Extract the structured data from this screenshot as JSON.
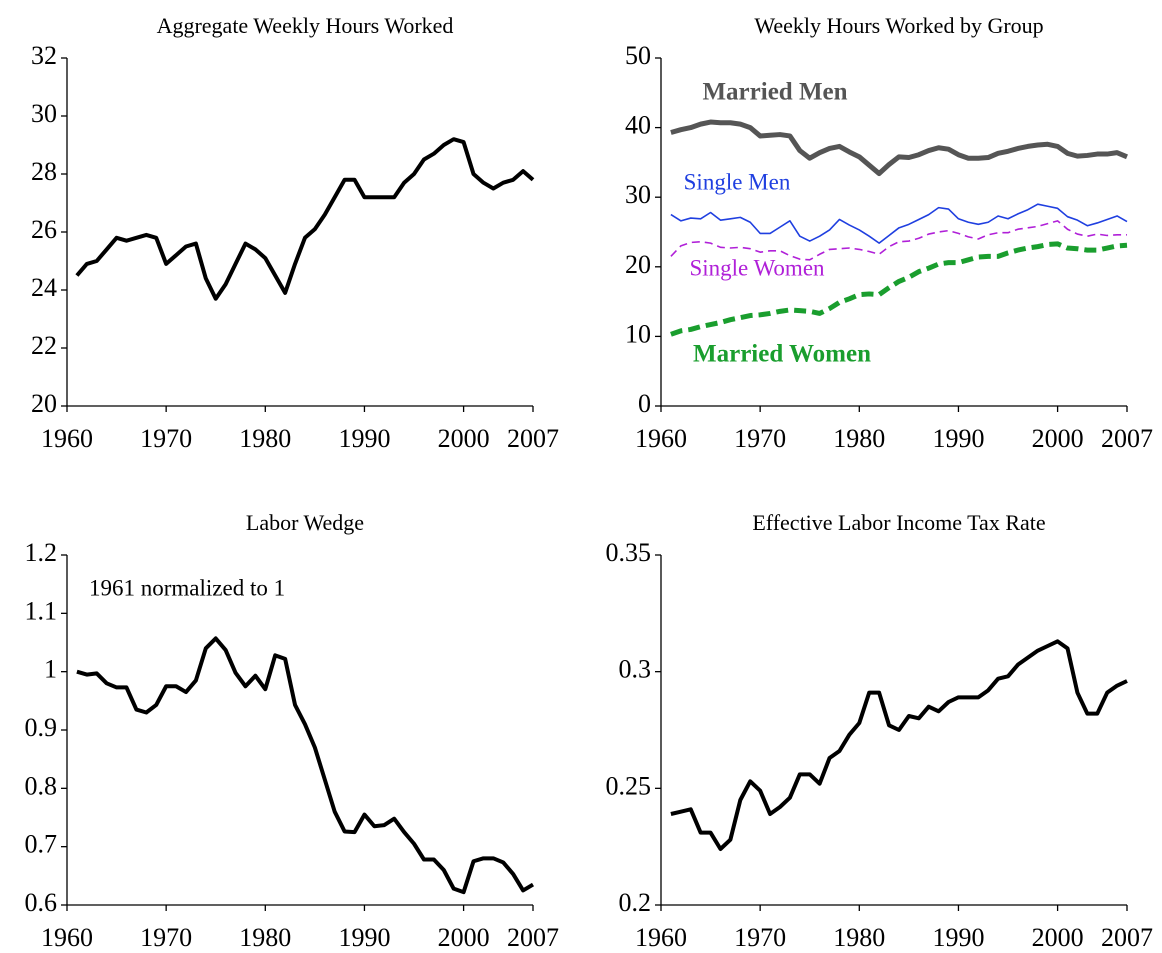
{
  "chart_data": [
    {
      "type": "line",
      "title": "Aggregate Weekly Hours Worked",
      "x": [
        1961,
        1962,
        1963,
        1964,
        1965,
        1966,
        1967,
        1968,
        1969,
        1970,
        1971,
        1972,
        1973,
        1974,
        1975,
        1976,
        1977,
        1978,
        1979,
        1980,
        1981,
        1982,
        1983,
        1984,
        1985,
        1986,
        1987,
        1988,
        1989,
        1990,
        1991,
        1992,
        1993,
        1994,
        1995,
        1996,
        1997,
        1998,
        1999,
        2000,
        2001,
        2002,
        2003,
        2004,
        2005,
        2006,
        2007
      ],
      "values": [
        24.5,
        24.9,
        25.0,
        25.4,
        25.8,
        25.7,
        25.8,
        25.9,
        25.8,
        24.9,
        25.2,
        25.5,
        25.6,
        24.4,
        23.7,
        24.2,
        24.9,
        25.6,
        25.4,
        25.1,
        24.5,
        23.9,
        24.9,
        25.8,
        26.1,
        26.6,
        27.2,
        27.8,
        27.8,
        27.2,
        27.2,
        27.2,
        27.2,
        27.7,
        28.0,
        28.5,
        28.7,
        29.0,
        29.2,
        29.1,
        28.0,
        27.7,
        27.5,
        27.7,
        27.8,
        28.1,
        27.8
      ],
      "color": "#000000",
      "xlim": [
        1960,
        2007
      ],
      "xticks": [
        1960,
        1970,
        1980,
        1990,
        2000,
        2007
      ],
      "ylim": [
        20,
        32
      ],
      "yticks": [
        20,
        22,
        24,
        26,
        28,
        30,
        32
      ]
    },
    {
      "type": "line",
      "title": "Weekly Hours Worked by Group",
      "x": [
        1961,
        1962,
        1963,
        1964,
        1965,
        1966,
        1967,
        1968,
        1969,
        1970,
        1971,
        1972,
        1973,
        1974,
        1975,
        1976,
        1977,
        1978,
        1979,
        1980,
        1981,
        1982,
        1983,
        1984,
        1985,
        1986,
        1987,
        1988,
        1989,
        1990,
        1991,
        1992,
        1993,
        1994,
        1995,
        1996,
        1997,
        1998,
        1999,
        2000,
        2001,
        2002,
        2003,
        2004,
        2005,
        2006,
        2007
      ],
      "series": [
        {
          "name": "Married Men",
          "color": "#555555",
          "values": [
            39.3,
            39.7,
            40.0,
            40.5,
            40.8,
            40.7,
            40.7,
            40.5,
            40.0,
            38.8,
            38.9,
            39.0,
            38.8,
            36.7,
            35.6,
            36.4,
            37.0,
            37.3,
            36.5,
            35.8,
            34.6,
            33.4,
            34.7,
            35.8,
            35.7,
            36.1,
            36.7,
            37.1,
            36.9,
            36.1,
            35.6,
            35.6,
            35.7,
            36.3,
            36.6,
            37.0,
            37.3,
            37.5,
            37.6,
            37.3,
            36.3,
            35.9,
            36.0,
            36.2,
            36.2,
            36.4,
            35.8
          ]
        },
        {
          "name": "Single Men",
          "color": "#1f3fe0",
          "values": [
            27.5,
            26.6,
            27.0,
            26.9,
            27.8,
            26.7,
            26.9,
            27.1,
            26.4,
            24.8,
            24.8,
            25.7,
            26.6,
            24.4,
            23.7,
            24.4,
            25.3,
            26.8,
            26.0,
            25.3,
            24.4,
            23.4,
            24.5,
            25.6,
            26.1,
            26.8,
            27.5,
            28.5,
            28.3,
            26.9,
            26.4,
            26.1,
            26.4,
            27.3,
            26.9,
            27.6,
            28.2,
            29.0,
            28.7,
            28.4,
            27.2,
            26.7,
            25.9,
            26.3,
            26.8,
            27.3,
            26.5
          ]
        },
        {
          "name": "Single Women",
          "color": "#b020d8",
          "values": [
            21.5,
            23.0,
            23.5,
            23.6,
            23.4,
            22.8,
            22.7,
            22.8,
            22.6,
            22.1,
            22.3,
            22.3,
            21.6,
            21.1,
            21.0,
            21.8,
            22.5,
            22.6,
            22.7,
            22.5,
            22.2,
            21.8,
            22.9,
            23.6,
            23.7,
            24.1,
            24.7,
            25.0,
            25.2,
            24.8,
            24.3,
            24.0,
            24.6,
            24.9,
            24.9,
            25.4,
            25.6,
            25.8,
            26.2,
            26.6,
            25.4,
            24.7,
            24.4,
            24.7,
            24.5,
            24.6,
            24.6
          ]
        },
        {
          "name": "Married Women",
          "color": "#1a9e2e",
          "values": [
            10.3,
            10.8,
            11.0,
            11.4,
            11.7,
            12.0,
            12.4,
            12.7,
            13.0,
            13.1,
            13.3,
            13.6,
            13.8,
            13.7,
            13.6,
            13.3,
            14.0,
            14.9,
            15.4,
            16.0,
            16.1,
            16.0,
            17.0,
            17.9,
            18.5,
            19.3,
            19.8,
            20.4,
            20.6,
            20.6,
            21.0,
            21.4,
            21.5,
            21.5,
            22.0,
            22.4,
            22.7,
            22.9,
            23.2,
            23.3,
            22.7,
            22.6,
            22.4,
            22.4,
            22.7,
            23.0,
            23.1
          ]
        }
      ],
      "xlim": [
        1960,
        2007
      ],
      "xticks": [
        1960,
        1970,
        1980,
        1990,
        2000,
        2007
      ],
      "ylim": [
        0,
        50
      ],
      "yticks": [
        0,
        10,
        20,
        30,
        40,
        50
      ]
    },
    {
      "type": "line",
      "title": "Labor Wedge",
      "annotation": "1961 normalized to 1",
      "x": [
        1961,
        1962,
        1963,
        1964,
        1965,
        1966,
        1967,
        1968,
        1969,
        1970,
        1971,
        1972,
        1973,
        1974,
        1975,
        1976,
        1977,
        1978,
        1979,
        1980,
        1981,
        1982,
        1983,
        1984,
        1985,
        1986,
        1987,
        1988,
        1989,
        1990,
        1991,
        1992,
        1993,
        1994,
        1995,
        1996,
        1997,
        1998,
        1999,
        2000,
        2001,
        2002,
        2003,
        2004,
        2005,
        2006,
        2007
      ],
      "values": [
        1.0,
        0.995,
        0.997,
        0.98,
        0.973,
        0.973,
        0.935,
        0.93,
        0.943,
        0.975,
        0.975,
        0.965,
        0.985,
        1.04,
        1.057,
        1.037,
        0.998,
        0.975,
        0.993,
        0.97,
        1.028,
        1.022,
        0.943,
        0.91,
        0.87,
        0.815,
        0.76,
        0.726,
        0.725,
        0.755,
        0.735,
        0.737,
        0.748,
        0.725,
        0.705,
        0.678,
        0.678,
        0.66,
        0.628,
        0.622,
        0.675,
        0.68,
        0.68,
        0.673,
        0.653,
        0.625,
        0.635
      ],
      "color": "#000000",
      "xlim": [
        1960,
        2007
      ],
      "xticks": [
        1960,
        1970,
        1980,
        1990,
        2000,
        2007
      ],
      "ylim": [
        0.6,
        1.2
      ],
      "yticks": [
        0.6,
        0.7,
        0.8,
        0.9,
        1,
        1.1,
        1.2
      ]
    },
    {
      "type": "line",
      "title": "Effective Labor Income Tax Rate",
      "x": [
        1961,
        1962,
        1963,
        1964,
        1965,
        1966,
        1967,
        1968,
        1969,
        1970,
        1971,
        1972,
        1973,
        1974,
        1975,
        1976,
        1977,
        1978,
        1979,
        1980,
        1981,
        1982,
        1983,
        1984,
        1985,
        1986,
        1987,
        1988,
        1989,
        1990,
        1991,
        1992,
        1993,
        1994,
        1995,
        1996,
        1997,
        1998,
        1999,
        2000,
        2001,
        2002,
        2003,
        2004,
        2005,
        2006,
        2007
      ],
      "values": [
        0.239,
        0.24,
        0.241,
        0.231,
        0.231,
        0.224,
        0.228,
        0.245,
        0.253,
        0.249,
        0.239,
        0.242,
        0.246,
        0.256,
        0.256,
        0.252,
        0.263,
        0.266,
        0.273,
        0.278,
        0.291,
        0.291,
        0.277,
        0.275,
        0.281,
        0.28,
        0.285,
        0.283,
        0.287,
        0.289,
        0.289,
        0.289,
        0.292,
        0.297,
        0.298,
        0.303,
        0.306,
        0.309,
        0.311,
        0.313,
        0.31,
        0.291,
        0.282,
        0.282,
        0.291,
        0.294,
        0.296
      ],
      "color": "#000000",
      "xlim": [
        1960,
        2007
      ],
      "xticks": [
        1960,
        1970,
        1980,
        1990,
        2000,
        2007
      ],
      "ylim": [
        0.2,
        0.35
      ],
      "yticks": [
        0.2,
        0.25,
        0.3,
        0.35
      ]
    }
  ]
}
